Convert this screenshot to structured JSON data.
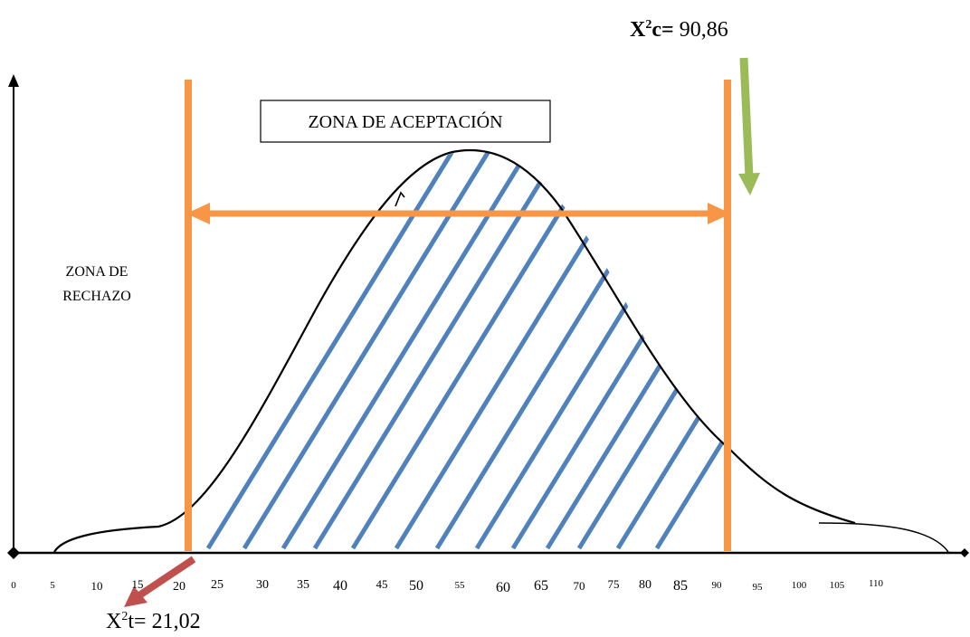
{
  "acceptance_zone_label": "ZONA DE ACEPTACIÓN",
  "rejection_zone_label": [
    "ZONA DE",
    "RECHAZO"
  ],
  "chi2_calculated": {
    "symbol": "X",
    "sup": "2",
    "sub": "c",
    "eq": "=",
    "value": "90,86"
  },
  "chi2_table": {
    "symbol": "X",
    "sup": "2",
    "sub": "t",
    "eq": "=",
    "value": "21,02"
  },
  "x_ticks": [
    "0",
    "5",
    "10",
    "15",
    "20",
    "25",
    "30",
    "35",
    "40",
    "45",
    "50",
    "55",
    "60",
    "65",
    "70",
    "75",
    "80",
    "85",
    "90",
    "95",
    "100",
    "105",
    "110"
  ],
  "colors": {
    "boundary": "#F79646",
    "hatch": "#4F81BD",
    "curve": "#000000",
    "arrow_calculated": "#9BBB59",
    "arrow_table": "#C0504D"
  }
}
